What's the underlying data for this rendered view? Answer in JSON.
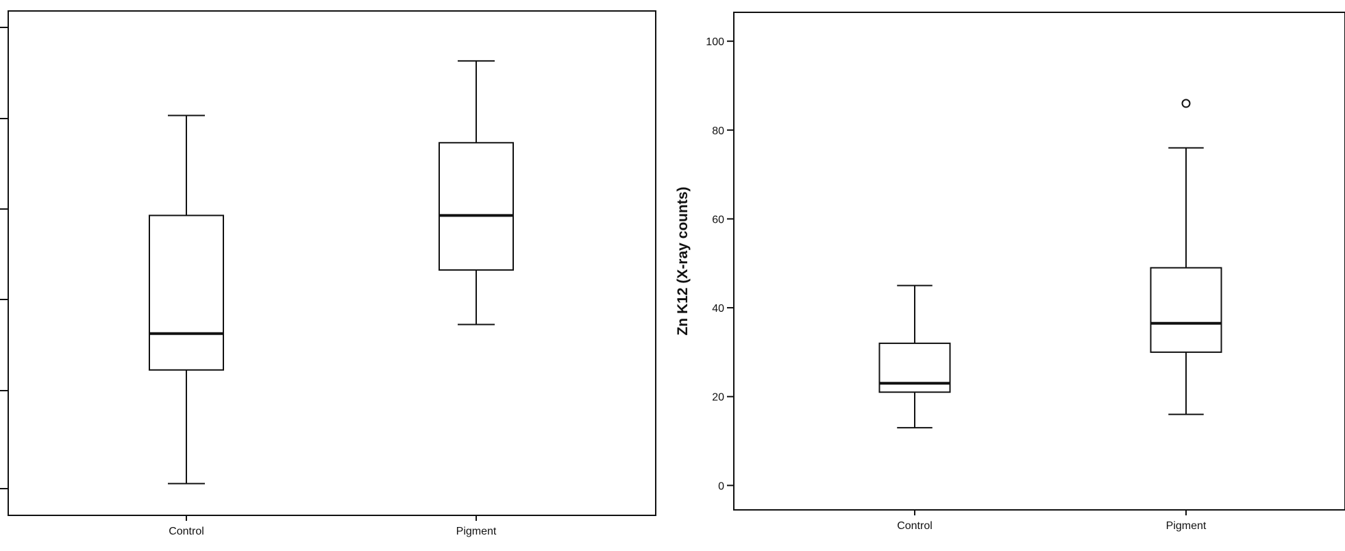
{
  "chart_data": [
    {
      "type": "box",
      "categories": [
        "Control",
        "Pigment"
      ],
      "ylabel": "",
      "ylim": [
        -3,
        108
      ],
      "yticks": [],
      "boxes": [
        {
          "category": "Control",
          "whisker_low": 4,
          "q1": 29,
          "median": 37,
          "q3": 63,
          "whisker_high": 85,
          "outliers": []
        },
        {
          "category": "Pigment",
          "whisker_low": 39,
          "q1": 51,
          "median": 63,
          "q3": 79,
          "whisker_high": 97,
          "outliers": []
        }
      ]
    },
    {
      "type": "box",
      "categories": [
        "Control",
        "Pigment"
      ],
      "ylabel": "Zn K12 (X-ray counts)",
      "ylim": [
        -5.5,
        106.5
      ],
      "yticks": [
        0,
        20,
        40,
        60,
        80,
        100
      ],
      "boxes": [
        {
          "category": "Control",
          "whisker_low": 13,
          "q1": 21,
          "median": 23,
          "q3": 32,
          "whisker_high": 45,
          "outliers": []
        },
        {
          "category": "Pigment",
          "whisker_low": 16,
          "q1": 30,
          "median": 36.5,
          "q3": 49,
          "whisker_high": 76,
          "outliers": [
            86
          ]
        }
      ]
    }
  ]
}
